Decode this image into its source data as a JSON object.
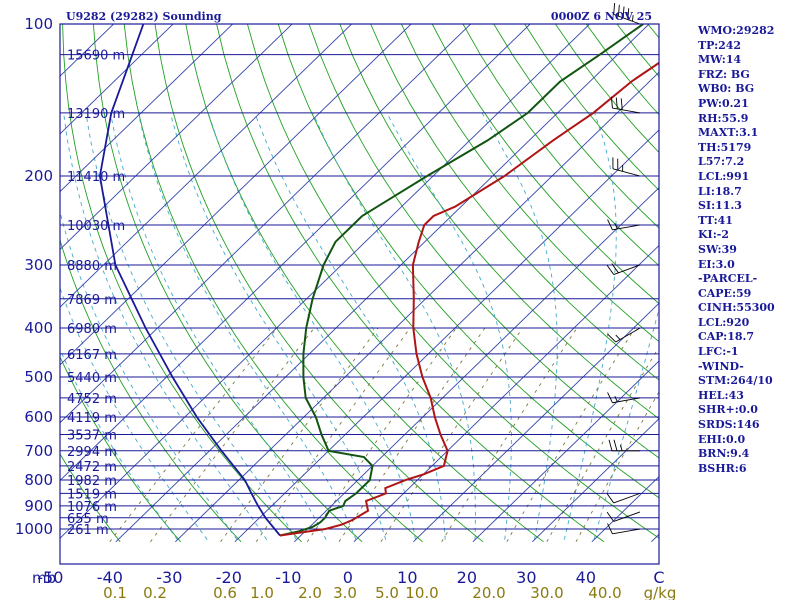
{
  "chart_data": {
    "type": "skew-t sounding",
    "title": "U9282 (29282) Sounding",
    "datetime": "0000Z  6 NOV 25",
    "pressure_axis": {
      "unit": "mb",
      "ticks": [
        100,
        200,
        300,
        400,
        500,
        600,
        700,
        800,
        900,
        1000
      ],
      "range": [
        100,
        1050
      ]
    },
    "temperature_axis": {
      "ticks": [
        "-50",
        "-40",
        "-30",
        "-20",
        "-10",
        "0",
        "10",
        "20",
        "30",
        "40"
      ],
      "end_label": "C",
      "range": [
        -54,
        44
      ]
    },
    "mixing_ratio_axis": {
      "ticks": [
        "0.1",
        "0.2",
        "0.6",
        "1.0",
        "2.0",
        "3.0",
        "5.0",
        "10.0",
        "20.0",
        "30.0",
        "40.0"
      ],
      "unit": "g/kg"
    },
    "height_labels": [
      {
        "p": 115,
        "label": "15690 m"
      },
      {
        "p": 150,
        "label": "13190 m"
      },
      {
        "p": 200,
        "label": "11410 m"
      },
      {
        "p": 250,
        "label": "10030 m"
      },
      {
        "p": 300,
        "label": "8880 m"
      },
      {
        "p": 350,
        "label": "7869 m"
      },
      {
        "p": 400,
        "label": "6980 m"
      },
      {
        "p": 450,
        "label": "6167 m"
      },
      {
        "p": 500,
        "label": "5440 m"
      },
      {
        "p": 550,
        "label": "4752 m"
      },
      {
        "p": 600,
        "label": "4119 m"
      },
      {
        "p": 650,
        "label": "3537 m"
      },
      {
        "p": 700,
        "label": "2994 m"
      },
      {
        "p": 750,
        "label": "2472 m"
      },
      {
        "p": 800,
        "label": "1982 m"
      },
      {
        "p": 850,
        "label": "1519 m"
      },
      {
        "p": 900,
        "label": "1076 m"
      },
      {
        "p": 950,
        "label": "655 m"
      },
      {
        "p": 1000,
        "label": "261 m"
      }
    ],
    "temperature_profile": [
      {
        "p": 1030,
        "t": -13.5
      },
      {
        "p": 1000,
        "t": -7
      },
      {
        "p": 980,
        "t": -5
      },
      {
        "p": 960,
        "t": -4
      },
      {
        "p": 940,
        "t": -3.5
      },
      {
        "p": 920,
        "t": -3
      },
      {
        "p": 900,
        "t": -4
      },
      {
        "p": 880,
        "t": -5
      },
      {
        "p": 850,
        "t": -3
      },
      {
        "p": 830,
        "t": -4
      },
      {
        "p": 800,
        "t": -2
      },
      {
        "p": 780,
        "t": 0
      },
      {
        "p": 750,
        "t": 2
      },
      {
        "p": 700,
        "t": 0
      },
      {
        "p": 650,
        "t": -4
      },
      {
        "p": 600,
        "t": -8
      },
      {
        "p": 550,
        "t": -12
      },
      {
        "p": 500,
        "t": -17
      },
      {
        "p": 450,
        "t": -22
      },
      {
        "p": 400,
        "t": -27
      },
      {
        "p": 350,
        "t": -32
      },
      {
        "p": 300,
        "t": -38
      },
      {
        "p": 270,
        "t": -41
      },
      {
        "p": 250,
        "t": -43
      },
      {
        "p": 240,
        "t": -43
      },
      {
        "p": 230,
        "t": -41
      },
      {
        "p": 200,
        "t": -38
      },
      {
        "p": 170,
        "t": -36
      },
      {
        "p": 150,
        "t": -34
      },
      {
        "p": 130,
        "t": -33
      },
      {
        "p": 115,
        "t": -31
      },
      {
        "p": 100,
        "t": -31
      }
    ],
    "dewpoint_profile": [
      {
        "p": 1030,
        "t": -13.5
      },
      {
        "p": 1010,
        "t": -11
      },
      {
        "p": 990,
        "t": -9.5
      },
      {
        "p": 970,
        "t": -9
      },
      {
        "p": 950,
        "t": -9
      },
      {
        "p": 920,
        "t": -9.5
      },
      {
        "p": 900,
        "t": -8
      },
      {
        "p": 880,
        "t": -8.5
      },
      {
        "p": 850,
        "t": -8
      },
      {
        "p": 800,
        "t": -8
      },
      {
        "p": 750,
        "t": -10
      },
      {
        "p": 720,
        "t": -13
      },
      {
        "p": 700,
        "t": -20
      },
      {
        "p": 650,
        "t": -24
      },
      {
        "p": 600,
        "t": -28
      },
      {
        "p": 550,
        "t": -33
      },
      {
        "p": 500,
        "t": -37
      },
      {
        "p": 450,
        "t": -41
      },
      {
        "p": 400,
        "t": -45
      },
      {
        "p": 350,
        "t": -49
      },
      {
        "p": 300,
        "t": -53
      },
      {
        "p": 270,
        "t": -55
      },
      {
        "p": 250,
        "t": -55
      },
      {
        "p": 240,
        "t": -55
      },
      {
        "p": 200,
        "t": -51
      },
      {
        "p": 170,
        "t": -47
      },
      {
        "p": 150,
        "t": -45
      },
      {
        "p": 130,
        "t": -45
      },
      {
        "p": 115,
        "t": -43
      },
      {
        "p": 100,
        "t": -41
      }
    ],
    "parcel_path": [
      {
        "p": 1030,
        "t": -13.5
      },
      {
        "p": 950,
        "t": -19
      },
      {
        "p": 900,
        "t": -22.3
      },
      {
        "p": 850,
        "t": -25.6
      },
      {
        "p": 800,
        "t": -29
      },
      {
        "p": 700,
        "t": -38
      },
      {
        "p": 600,
        "t": -48
      },
      {
        "p": 500,
        "t": -59
      },
      {
        "p": 400,
        "t": -72
      },
      {
        "p": 300,
        "t": -88
      },
      {
        "p": 200,
        "t": -106
      },
      {
        "p": 150,
        "t": -115
      },
      {
        "p": 100,
        "t": -125
      }
    ],
    "wind_barbs": [
      {
        "p": 100,
        "dir": 290,
        "kt": 45
      },
      {
        "p": 150,
        "dir": 280,
        "kt": 30
      },
      {
        "p": 200,
        "dir": 285,
        "kt": 25
      },
      {
        "p": 250,
        "dir": 260,
        "kt": 15
      },
      {
        "p": 300,
        "dir": 250,
        "kt": 20
      },
      {
        "p": 400,
        "dir": 240,
        "kt": 15
      },
      {
        "p": 550,
        "dir": 260,
        "kt": 15
      },
      {
        "p": 700,
        "dir": 270,
        "kt": 25
      },
      {
        "p": 850,
        "dir": 250,
        "kt": 10
      },
      {
        "p": 925,
        "dir": 250,
        "kt": 10
      },
      {
        "p": 1000,
        "dir": 260,
        "kt": 10
      }
    ],
    "colors": {
      "isobar": "#1a1a99",
      "isotherm": "#3344aa",
      "dry_adiabat": "#22a022",
      "moist_adiabat": "#44aacc",
      "mixing_ratio": "#7a7a3a",
      "temperature": "#b01414",
      "dewpoint": "#115511",
      "parcel": "#1a1a99",
      "wind": "#000000",
      "frame": "#1a1a99"
    },
    "indices": [
      "WMO:29282",
      "TP:242",
      "MW:14",
      "FRZ: BG",
      "WB0: BG",
      "PW:0.21",
      "RH:55.9",
      "MAXT:3.1",
      "TH:5179",
      "L57:7.2",
      "LCL:991",
      "LI:18.7",
      "SI:11.3",
      "TT:41",
      "KI:-2",
      "SW:39",
      "EI:3.0",
      "-PARCEL-",
      "CAPE:59",
      "CINH:55300",
      "LCL:920",
      "CAP:18.7",
      "LFC:-1",
      "-WIND-",
      "STM:264/10",
      "HEL:43",
      "SHR+:0.0",
      "SRDS:146",
      "EHI:0.0",
      "BRN:9.4",
      "BSHR:6"
    ]
  }
}
